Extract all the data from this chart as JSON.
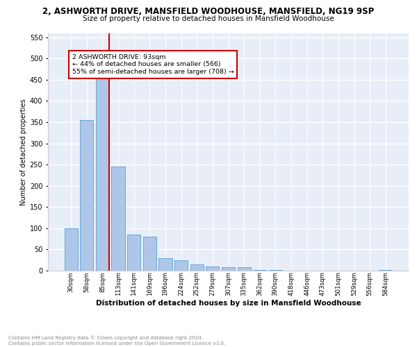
{
  "title1": "2, ASHWORTH DRIVE, MANSFIELD WOODHOUSE, MANSFIELD, NG19 9SP",
  "title2": "Size of property relative to detached houses in Mansfield Woodhouse",
  "xlabel": "Distribution of detached houses by size in Mansfield Woodhouse",
  "ylabel": "Number of detached properties",
  "categories": [
    "30sqm",
    "58sqm",
    "85sqm",
    "113sqm",
    "141sqm",
    "169sqm",
    "196sqm",
    "224sqm",
    "252sqm",
    "279sqm",
    "307sqm",
    "335sqm",
    "362sqm",
    "390sqm",
    "418sqm",
    "446sqm",
    "473sqm",
    "501sqm",
    "529sqm",
    "556sqm",
    "584sqm"
  ],
  "values": [
    100,
    355,
    500,
    245,
    85,
    80,
    30,
    25,
    15,
    10,
    8,
    8,
    1,
    1,
    0,
    0,
    0,
    0,
    0,
    0,
    1
  ],
  "bar_color": "#aec6e8",
  "bar_edgecolor": "#5a9fd4",
  "property_label": "2 ASHWORTH DRIVE: 93sqm",
  "smaller_pct": "44%",
  "smaller_count": "566",
  "larger_pct": "55%",
  "larger_count": "708",
  "vline_x_index": 2,
  "vline_color": "#cc0000",
  "annotation_box_color": "#cc0000",
  "background_color": "#e8eef8",
  "grid_color": "#ffffff",
  "footer_line1": "Contains HM Land Registry data © Crown copyright and database right 2024.",
  "footer_line2": "Contains public sector information licensed under the Open Government Licence v3.0.",
  "ylim": [
    0,
    560
  ],
  "yticks": [
    0,
    50,
    100,
    150,
    200,
    250,
    300,
    350,
    400,
    450,
    500,
    550
  ]
}
